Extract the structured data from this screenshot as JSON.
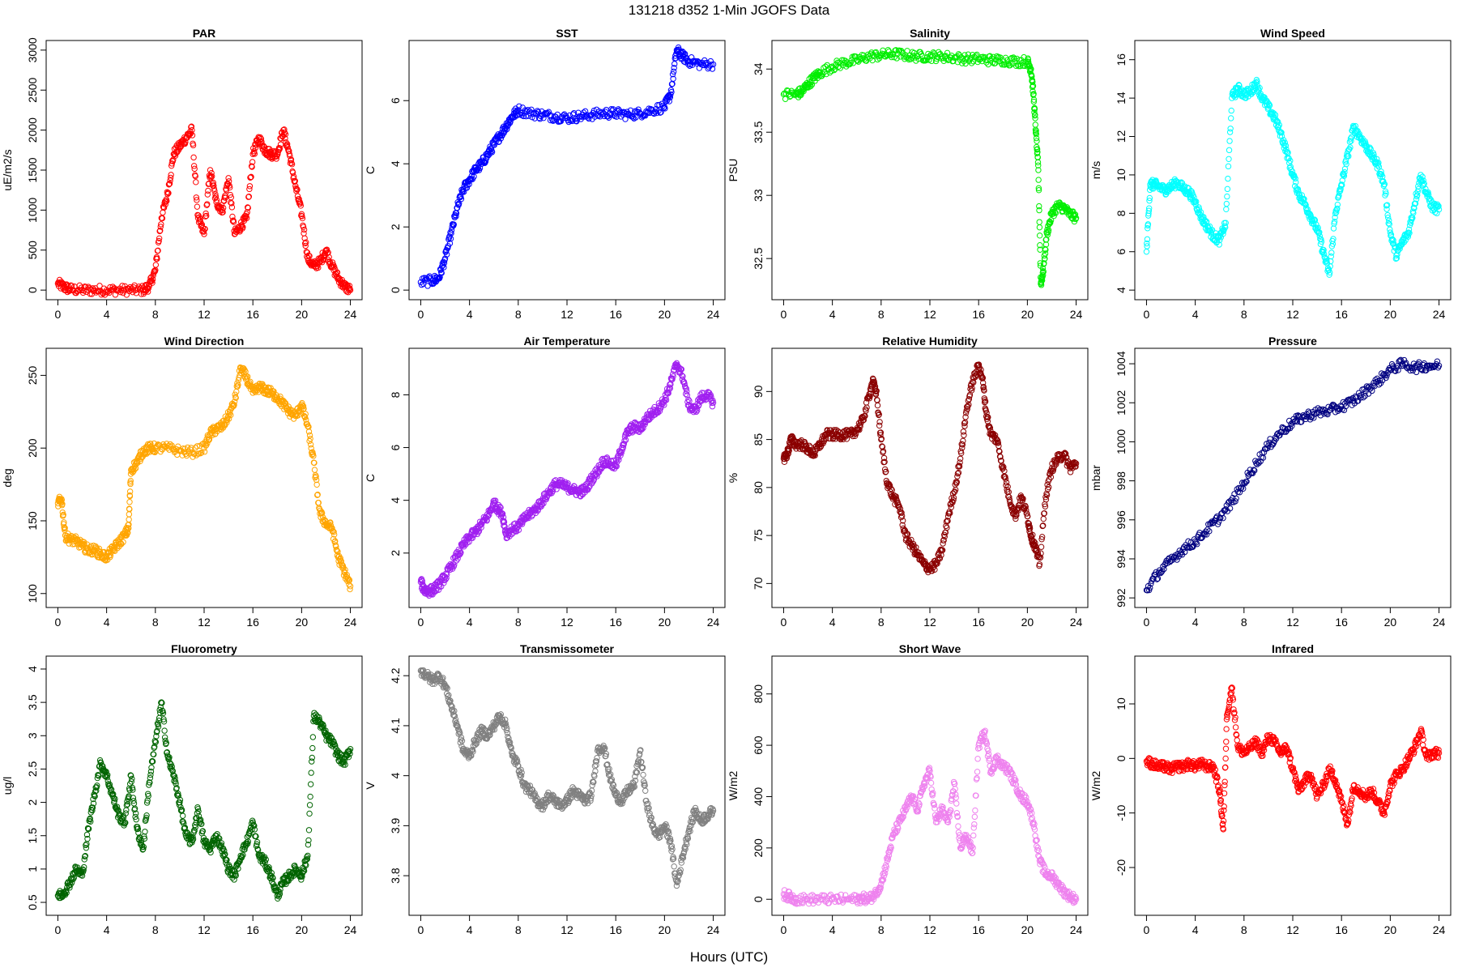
{
  "figure": {
    "title": "131218   d352   1-Min  JGOFS Data",
    "xlabel": "Hours (UTC)"
  },
  "chart_data": [
    {
      "type": "scatter",
      "title": "PAR",
      "ylabel": "uE/m2/s",
      "color": "#ff0000",
      "xlim": [
        0,
        24
      ],
      "ylim": [
        0,
        3000
      ],
      "xticks": [
        0,
        4,
        8,
        12,
        16,
        20,
        24
      ],
      "yticks": [
        0,
        500,
        1000,
        1500,
        2000,
        2500,
        3000
      ],
      "x": [
        0,
        0.5,
        1,
        2,
        3,
        4,
        5,
        6,
        7,
        7.5,
        8,
        8.5,
        9,
        9.5,
        10,
        10.5,
        11,
        11.5,
        12,
        12.5,
        13,
        13.5,
        14,
        14.5,
        15,
        15.5,
        16,
        16.5,
        17,
        17.5,
        18,
        18.5,
        19,
        19.5,
        20,
        20.5,
        21,
        21.5,
        22,
        22.5,
        23,
        23.5,
        24
      ],
      "y": [
        80,
        40,
        10,
        0,
        0,
        0,
        0,
        0,
        0,
        50,
        250,
        900,
        1200,
        1700,
        1800,
        1900,
        2000,
        900,
        700,
        1500,
        1100,
        1000,
        1400,
        700,
        800,
        900,
        1700,
        1900,
        1750,
        1700,
        1700,
        2000,
        1700,
        1300,
        950,
        400,
        300,
        350,
        500,
        300,
        150,
        50,
        0
      ]
    },
    {
      "type": "scatter",
      "title": "SST",
      "ylabel": "C",
      "color": "#0000ff",
      "xlim": [
        0,
        24
      ],
      "ylim": [
        0,
        7.6
      ],
      "xticks": [
        0,
        4,
        8,
        12,
        16,
        20,
        24
      ],
      "yticks": [
        0,
        2,
        4,
        6
      ],
      "x": [
        0,
        1,
        1.5,
        2,
        2.5,
        3,
        3.5,
        4,
        4.5,
        5,
        5.5,
        6,
        6.5,
        7,
        7.5,
        8,
        9,
        10,
        11,
        12,
        13,
        14,
        15,
        16,
        17,
        18,
        19,
        20,
        20.5,
        21,
        21.5,
        22,
        23,
        24
      ],
      "y": [
        0.25,
        0.3,
        0.4,
        1.0,
        1.8,
        2.6,
        3.2,
        3.5,
        3.8,
        4.0,
        4.3,
        4.6,
        4.9,
        5.2,
        5.5,
        5.7,
        5.6,
        5.55,
        5.5,
        5.45,
        5.5,
        5.55,
        5.6,
        5.6,
        5.55,
        5.6,
        5.7,
        5.8,
        6.2,
        7.6,
        7.4,
        7.25,
        7.15,
        7.15
      ]
    },
    {
      "type": "scatter",
      "title": "Salinity",
      "ylabel": "PSU",
      "color": "#00ee00",
      "xlim": [
        0,
        24
      ],
      "ylim": [
        32.25,
        34.15
      ],
      "xticks": [
        0,
        4,
        8,
        12,
        16,
        20,
        24
      ],
      "yticks": [
        32.5,
        33.0,
        33.5,
        34.0
      ],
      "x": [
        0,
        1,
        1.5,
        2,
        2.5,
        3,
        4,
        5,
        6,
        7,
        8,
        9,
        10,
        11,
        12,
        13,
        14,
        15,
        16,
        17,
        18,
        19,
        20,
        20.3,
        20.5,
        20.7,
        20.9,
        21.1,
        21.3,
        21.6,
        22,
        22.5,
        23,
        23.5,
        24
      ],
      "y": [
        33.8,
        33.8,
        33.82,
        33.88,
        33.93,
        33.97,
        34.02,
        34.05,
        34.07,
        34.1,
        34.11,
        34.12,
        34.11,
        34.1,
        34.1,
        34.1,
        34.09,
        34.08,
        34.08,
        34.07,
        34.07,
        34.06,
        34.06,
        34.0,
        33.8,
        33.5,
        33.2,
        32.3,
        32.4,
        32.7,
        32.85,
        32.92,
        32.9,
        32.85,
        32.82
      ]
    },
    {
      "type": "scatter",
      "title": "Wind Speed",
      "ylabel": "m/s",
      "color": "#00ffff",
      "xlim": [
        0,
        24
      ],
      "ylim": [
        4,
        16.5
      ],
      "xticks": [
        0,
        4,
        8,
        12,
        16,
        20,
        24
      ],
      "yticks": [
        4,
        6,
        8,
        10,
        12,
        14,
        16
      ],
      "x": [
        0,
        0.3,
        0.6,
        1,
        1.5,
        2,
        2.5,
        3,
        3.5,
        4,
        4.5,
        5,
        5.5,
        6,
        6.5,
        7,
        7.5,
        8,
        8.5,
        9,
        9.5,
        10,
        10.5,
        11,
        11.5,
        12,
        12.5,
        13,
        13.5,
        14,
        14.5,
        15,
        15.5,
        16,
        16.5,
        17,
        17.5,
        18,
        18.5,
        19,
        19.5,
        20,
        20.5,
        21,
        21.5,
        22,
        22.5,
        23,
        23.5,
        24
      ],
      "y": [
        6,
        9.5,
        9.5,
        9.4,
        9.2,
        9.4,
        9.6,
        9.3,
        9.1,
        8.6,
        7.8,
        7.3,
        6.8,
        6.6,
        7.5,
        14,
        14.5,
        14.2,
        14.3,
        14.8,
        14.0,
        13.5,
        13.0,
        12.2,
        11.2,
        10.0,
        9.0,
        8.5,
        7.8,
        7.2,
        6.0,
        4.8,
        8.0,
        9.5,
        11.0,
        12.5,
        12.0,
        11.5,
        11.0,
        10.5,
        9.5,
        7.0,
        5.8,
        6.5,
        7.0,
        8.5,
        10.0,
        9.0,
        8.3,
        8.2
      ]
    },
    {
      "type": "scatter",
      "title": "Wind Direction",
      "ylabel": "deg",
      "color": "#ffa500",
      "xlim": [
        0,
        24
      ],
      "ylim": [
        97,
        262
      ],
      "xticks": [
        0,
        4,
        8,
        12,
        16,
        20,
        24
      ],
      "yticks": [
        100,
        150,
        200,
        250
      ],
      "x": [
        0,
        0.3,
        0.6,
        1,
        1.5,
        2,
        2.5,
        3,
        3.5,
        4,
        4.5,
        5,
        5.5,
        5.8,
        6,
        6.5,
        7,
        7.5,
        8,
        9,
        10,
        11,
        12,
        12.5,
        13,
        13.5,
        14,
        14.5,
        15,
        15.5,
        16,
        16.5,
        17,
        17.5,
        18,
        18.5,
        19,
        19.5,
        20,
        20.5,
        21,
        21.5,
        22,
        22.5,
        23,
        23.5,
        24
      ],
      "y": [
        162,
        165,
        140,
        137,
        136,
        133,
        130,
        130,
        127,
        125,
        130,
        135,
        140,
        145,
        185,
        190,
        198,
        200,
        200,
        200,
        198,
        197,
        200,
        210,
        213,
        215,
        222,
        232,
        255,
        248,
        238,
        242,
        240,
        238,
        235,
        230,
        225,
        222,
        230,
        215,
        190,
        155,
        148,
        145,
        125,
        115,
        105
      ]
    },
    {
      "type": "scatter",
      "title": "Air Temperature",
      "ylabel": "C",
      "color": "#a020f0",
      "xlim": [
        0,
        24
      ],
      "ylim": [
        0.3,
        9.4
      ],
      "xticks": [
        0,
        4,
        8,
        12,
        16,
        20,
        24
      ],
      "yticks": [
        2,
        4,
        6,
        8
      ],
      "x": [
        0,
        0.3,
        0.6,
        1,
        1.5,
        2,
        2.5,
        3,
        3.5,
        4,
        4.5,
        5,
        5.5,
        6,
        6.3,
        6.7,
        7,
        7.5,
        8,
        8.5,
        9,
        9.5,
        10,
        10.5,
        11,
        11.5,
        12,
        12.5,
        13,
        13.5,
        14,
        14.5,
        15,
        15.5,
        16,
        16.5,
        17,
        17.5,
        18,
        18.5,
        19,
        19.5,
        20,
        20.5,
        21,
        21.5,
        22,
        22.5,
        23,
        23.5,
        24
      ],
      "y": [
        0.9,
        0.6,
        0.55,
        0.6,
        0.8,
        1.1,
        1.5,
        1.9,
        2.3,
        2.6,
        2.8,
        3.1,
        3.4,
        3.9,
        3.7,
        3.5,
        2.7,
        2.9,
        3.0,
        3.3,
        3.5,
        3.7,
        4.0,
        4.3,
        4.6,
        4.6,
        4.5,
        4.4,
        4.3,
        4.4,
        4.8,
        5.1,
        5.5,
        5.4,
        5.3,
        6.0,
        6.6,
        6.8,
        6.7,
        7.1,
        7.3,
        7.5,
        7.8,
        8.4,
        9.2,
        8.7,
        7.6,
        7.4,
        7.9,
        8.0,
        7.7
      ]
    },
    {
      "type": "scatter",
      "title": "Relative Humidity",
      "ylabel": "%",
      "color": "#8b0000",
      "xlim": [
        0,
        24
      ],
      "ylim": [
        68.5,
        93.5
      ],
      "xticks": [
        0,
        4,
        8,
        12,
        16,
        20,
        24
      ],
      "yticks": [
        70,
        75,
        80,
        85,
        90
      ],
      "x": [
        0,
        0.3,
        0.6,
        1,
        1.5,
        2,
        2.5,
        3,
        3.5,
        4,
        4.5,
        5,
        5.5,
        6,
        6.5,
        7,
        7.3,
        7.6,
        8,
        8.5,
        9,
        9.5,
        10,
        10.5,
        11,
        11.5,
        12,
        12.5,
        13,
        13.5,
        14,
        14.5,
        15,
        15.5,
        16,
        16.3,
        16.6,
        17,
        17.5,
        18,
        18.5,
        19,
        19.5,
        20,
        20.3,
        20.6,
        21,
        21.5,
        22,
        22.5,
        23,
        23.5,
        24
      ],
      "y": [
        83,
        83.5,
        85,
        84.5,
        84.5,
        84,
        83.5,
        84.5,
        85.5,
        85.5,
        85.5,
        85.5,
        85.5,
        86,
        87,
        89.5,
        91,
        90,
        85,
        80.5,
        79,
        78,
        75,
        74,
        73,
        72,
        71.5,
        72,
        73.5,
        77,
        79.5,
        83,
        88,
        91,
        92.7,
        91.5,
        88,
        85.5,
        85,
        82,
        79,
        77,
        79,
        77,
        75,
        74,
        72,
        79,
        82,
        83,
        83.5,
        82,
        82.5
      ]
    },
    {
      "type": "scatter",
      "title": "Pressure",
      "ylabel": "mbar",
      "color": "#000080",
      "xlim": [
        0,
        24
      ],
      "ylim": [
        992,
        1004.3
      ],
      "xticks": [
        0,
        4,
        8,
        12,
        16,
        20,
        24
      ],
      "yticks": [
        992,
        994,
        996,
        998,
        1000,
        1002,
        1004
      ],
      "x": [
        0,
        1,
        2,
        3,
        4,
        5,
        6,
        7,
        8,
        9,
        10,
        11,
        12,
        13,
        14,
        15,
        16,
        17,
        18,
        19,
        20,
        21,
        22,
        23,
        24
      ],
      "y": [
        992.4,
        993.3,
        993.9,
        994.5,
        994.9,
        995.5,
        996.1,
        996.9,
        997.9,
        998.9,
        999.8,
        1000.5,
        1001.0,
        1001.3,
        1001.5,
        1001.6,
        1001.8,
        1002.1,
        1002.6,
        1003.1,
        1003.7,
        1004.0,
        1003.8,
        1003.9,
        1003.9
      ]
    },
    {
      "type": "scatter",
      "title": "Fluorometry",
      "ylabel": "ug/l",
      "color": "#006400",
      "xlim": [
        0,
        24
      ],
      "ylim": [
        0.45,
        4.05
      ],
      "xticks": [
        0,
        4,
        8,
        12,
        16,
        20,
        24
      ],
      "yticks": [
        0.5,
        1.0,
        1.5,
        2.0,
        2.5,
        3.0,
        3.5,
        4.0
      ],
      "x": [
        0,
        0.5,
        1,
        1.5,
        2,
        2.5,
        3,
        3.5,
        4,
        4.5,
        5,
        5.5,
        6,
        6.5,
        7,
        7.5,
        8,
        8.5,
        9,
        9.5,
        10,
        10.5,
        11,
        11.5,
        12,
        12.5,
        13,
        13.5,
        14,
        14.5,
        15,
        15.5,
        16,
        16.5,
        17,
        17.5,
        18,
        18.5,
        19,
        19.5,
        20,
        20.5,
        21,
        21.5,
        22,
        22.5,
        23,
        23.5,
        24
      ],
      "y": [
        0.6,
        0.65,
        0.8,
        1.0,
        0.9,
        1.6,
        2.1,
        2.6,
        2.4,
        2.1,
        1.8,
        1.7,
        2.4,
        1.6,
        1.3,
        2.3,
        2.9,
        3.5,
        2.7,
        2.4,
        2.0,
        1.5,
        1.4,
        1.9,
        1.4,
        1.3,
        1.5,
        1.3,
        1.0,
        0.9,
        1.2,
        1.4,
        1.7,
        1.2,
        1.1,
        0.9,
        0.6,
        0.8,
        0.9,
        1.0,
        0.9,
        1.2,
        3.3,
        3.2,
        3.0,
        2.9,
        2.7,
        2.6,
        2.8
      ]
    },
    {
      "type": "scatter",
      "title": "Transmissometer",
      "ylabel": "V",
      "color": "#808080",
      "xlim": [
        0,
        24
      ],
      "ylim": [
        3.74,
        4.22
      ],
      "xticks": [
        0,
        4,
        8,
        12,
        16,
        20,
        24
      ],
      "yticks": [
        3.8,
        3.9,
        4.0,
        4.1,
        4.2
      ],
      "x": [
        0,
        0.5,
        1,
        1.5,
        2,
        2.5,
        3,
        3.5,
        4,
        4.5,
        5,
        5.5,
        6,
        6.5,
        7,
        7.5,
        8,
        8.5,
        9,
        9.5,
        10,
        10.5,
        11,
        11.5,
        12,
        12.5,
        13,
        13.5,
        14,
        14.5,
        15,
        15.5,
        16,
        16.5,
        17,
        17.5,
        18,
        18.5,
        19,
        19.5,
        20,
        20.5,
        21,
        21.5,
        22,
        22.5,
        23,
        23.5,
        24
      ],
      "y": [
        4.21,
        4.2,
        4.19,
        4.2,
        4.18,
        4.14,
        4.1,
        4.05,
        4.04,
        4.07,
        4.09,
        4.08,
        4.1,
        4.12,
        4.1,
        4.04,
        4.02,
        3.98,
        3.97,
        3.95,
        3.94,
        3.96,
        3.95,
        3.94,
        3.95,
        3.97,
        3.96,
        3.95,
        3.96,
        4.05,
        4.06,
        4.0,
        3.96,
        3.95,
        3.97,
        3.98,
        4.05,
        3.95,
        3.9,
        3.88,
        3.9,
        3.87,
        3.78,
        3.84,
        3.89,
        3.93,
        3.91,
        3.92,
        3.93
      ]
    },
    {
      "type": "scatter",
      "title": "Short Wave",
      "ylabel": "W/m2",
      "color": "#ee82ee",
      "xlim": [
        0,
        24
      ],
      "ylim": [
        -25,
        910
      ],
      "xticks": [
        0,
        4,
        8,
        12,
        16,
        20,
        24
      ],
      "yticks": [
        0,
        200,
        400,
        600,
        800
      ],
      "x": [
        0,
        0.5,
        1,
        2,
        3,
        4,
        5,
        6,
        6.5,
        7,
        7.5,
        8,
        8.5,
        9,
        9.5,
        10,
        10.5,
        11,
        11.5,
        12,
        12.5,
        13,
        13.5,
        14,
        14.5,
        15,
        15.5,
        16,
        16.5,
        17,
        17.5,
        18,
        18.5,
        19,
        19.5,
        20,
        20.5,
        21,
        21.5,
        22,
        22.5,
        23,
        23.5,
        24
      ],
      "y": [
        20,
        10,
        0,
        0,
        0,
        0,
        0,
        0,
        5,
        0,
        20,
        60,
        150,
        250,
        300,
        350,
        400,
        350,
        450,
        500,
        300,
        350,
        300,
        450,
        200,
        250,
        180,
        600,
        650,
        500,
        550,
        520,
        500,
        450,
        400,
        380,
        300,
        150,
        100,
        90,
        60,
        30,
        10,
        0
      ]
    },
    {
      "type": "scatter",
      "title": "Infrared",
      "ylabel": "W/m2",
      "color": "#ff0000",
      "xlim": [
        0,
        24
      ],
      "ylim": [
        -27,
        17
      ],
      "xticks": [
        0,
        4,
        8,
        12,
        16,
        20,
        24
      ],
      "yticks": [
        -20,
        -10,
        0,
        10
      ],
      "x": [
        0,
        0.5,
        1,
        1.5,
        2,
        2.5,
        3,
        3.5,
        4,
        4.5,
        5,
        5.5,
        6,
        6.3,
        6.6,
        7,
        7.5,
        8,
        8.5,
        9,
        9.5,
        10,
        10.5,
        11,
        11.5,
        12,
        12.5,
        13,
        13.5,
        14,
        14.5,
        15,
        15.5,
        16,
        16.5,
        17,
        17.5,
        18,
        18.5,
        19,
        19.5,
        20,
        20.5,
        21,
        21.5,
        22,
        22.5,
        23,
        23.5,
        24
      ],
      "y": [
        -0.5,
        -1,
        -1.5,
        -1.5,
        -2,
        -1.5,
        -1.5,
        -1,
        -1.5,
        -1,
        -1.5,
        -1.5,
        -6,
        -13,
        8,
        13,
        2,
        1,
        2,
        3,
        1,
        4,
        3,
        1,
        2,
        -2,
        -6,
        -4,
        -3,
        -7,
        -5,
        -2,
        -4,
        -8,
        -12,
        -5,
        -6,
        -7,
        -6,
        -8,
        -10,
        -5,
        -3,
        -2,
        0,
        2,
        5,
        0,
        1,
        1
      ]
    }
  ]
}
